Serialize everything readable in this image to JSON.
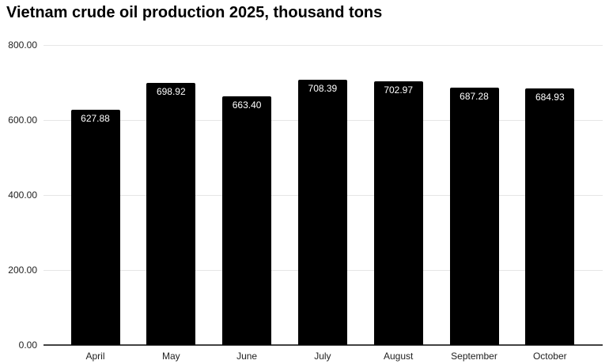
{
  "title": "Vietnam crude oil production 2025, thousand tons",
  "chart_data": {
    "type": "bar",
    "title": "Vietnam crude oil production 2025, thousand tons",
    "categories": [
      "April",
      "May",
      "June",
      "July",
      "August",
      "September",
      "October"
    ],
    "values": [
      627.88,
      698.92,
      663.4,
      708.39,
      702.97,
      687.28,
      684.93
    ],
    "value_labels": [
      "627.88",
      "698.92",
      "663.40",
      "708.39",
      "702.97",
      "687.28",
      "684.93"
    ],
    "xlabel": "",
    "ylabel": "",
    "ylim": [
      0,
      800
    ],
    "yticks": [
      0,
      200,
      400,
      600,
      800
    ],
    "ytick_labels": [
      "0.00",
      "200.00",
      "400.00",
      "600.00",
      "800.00"
    ],
    "grid": true,
    "legend": false,
    "bar_color": "#000000",
    "bar_label_color": "#ffffff"
  },
  "colors": {
    "background": "#ffffff",
    "gridline": "#e6e6e6",
    "axis_line": "#424242",
    "tick_text": "#1f1f1f",
    "title_text": "#000000"
  }
}
